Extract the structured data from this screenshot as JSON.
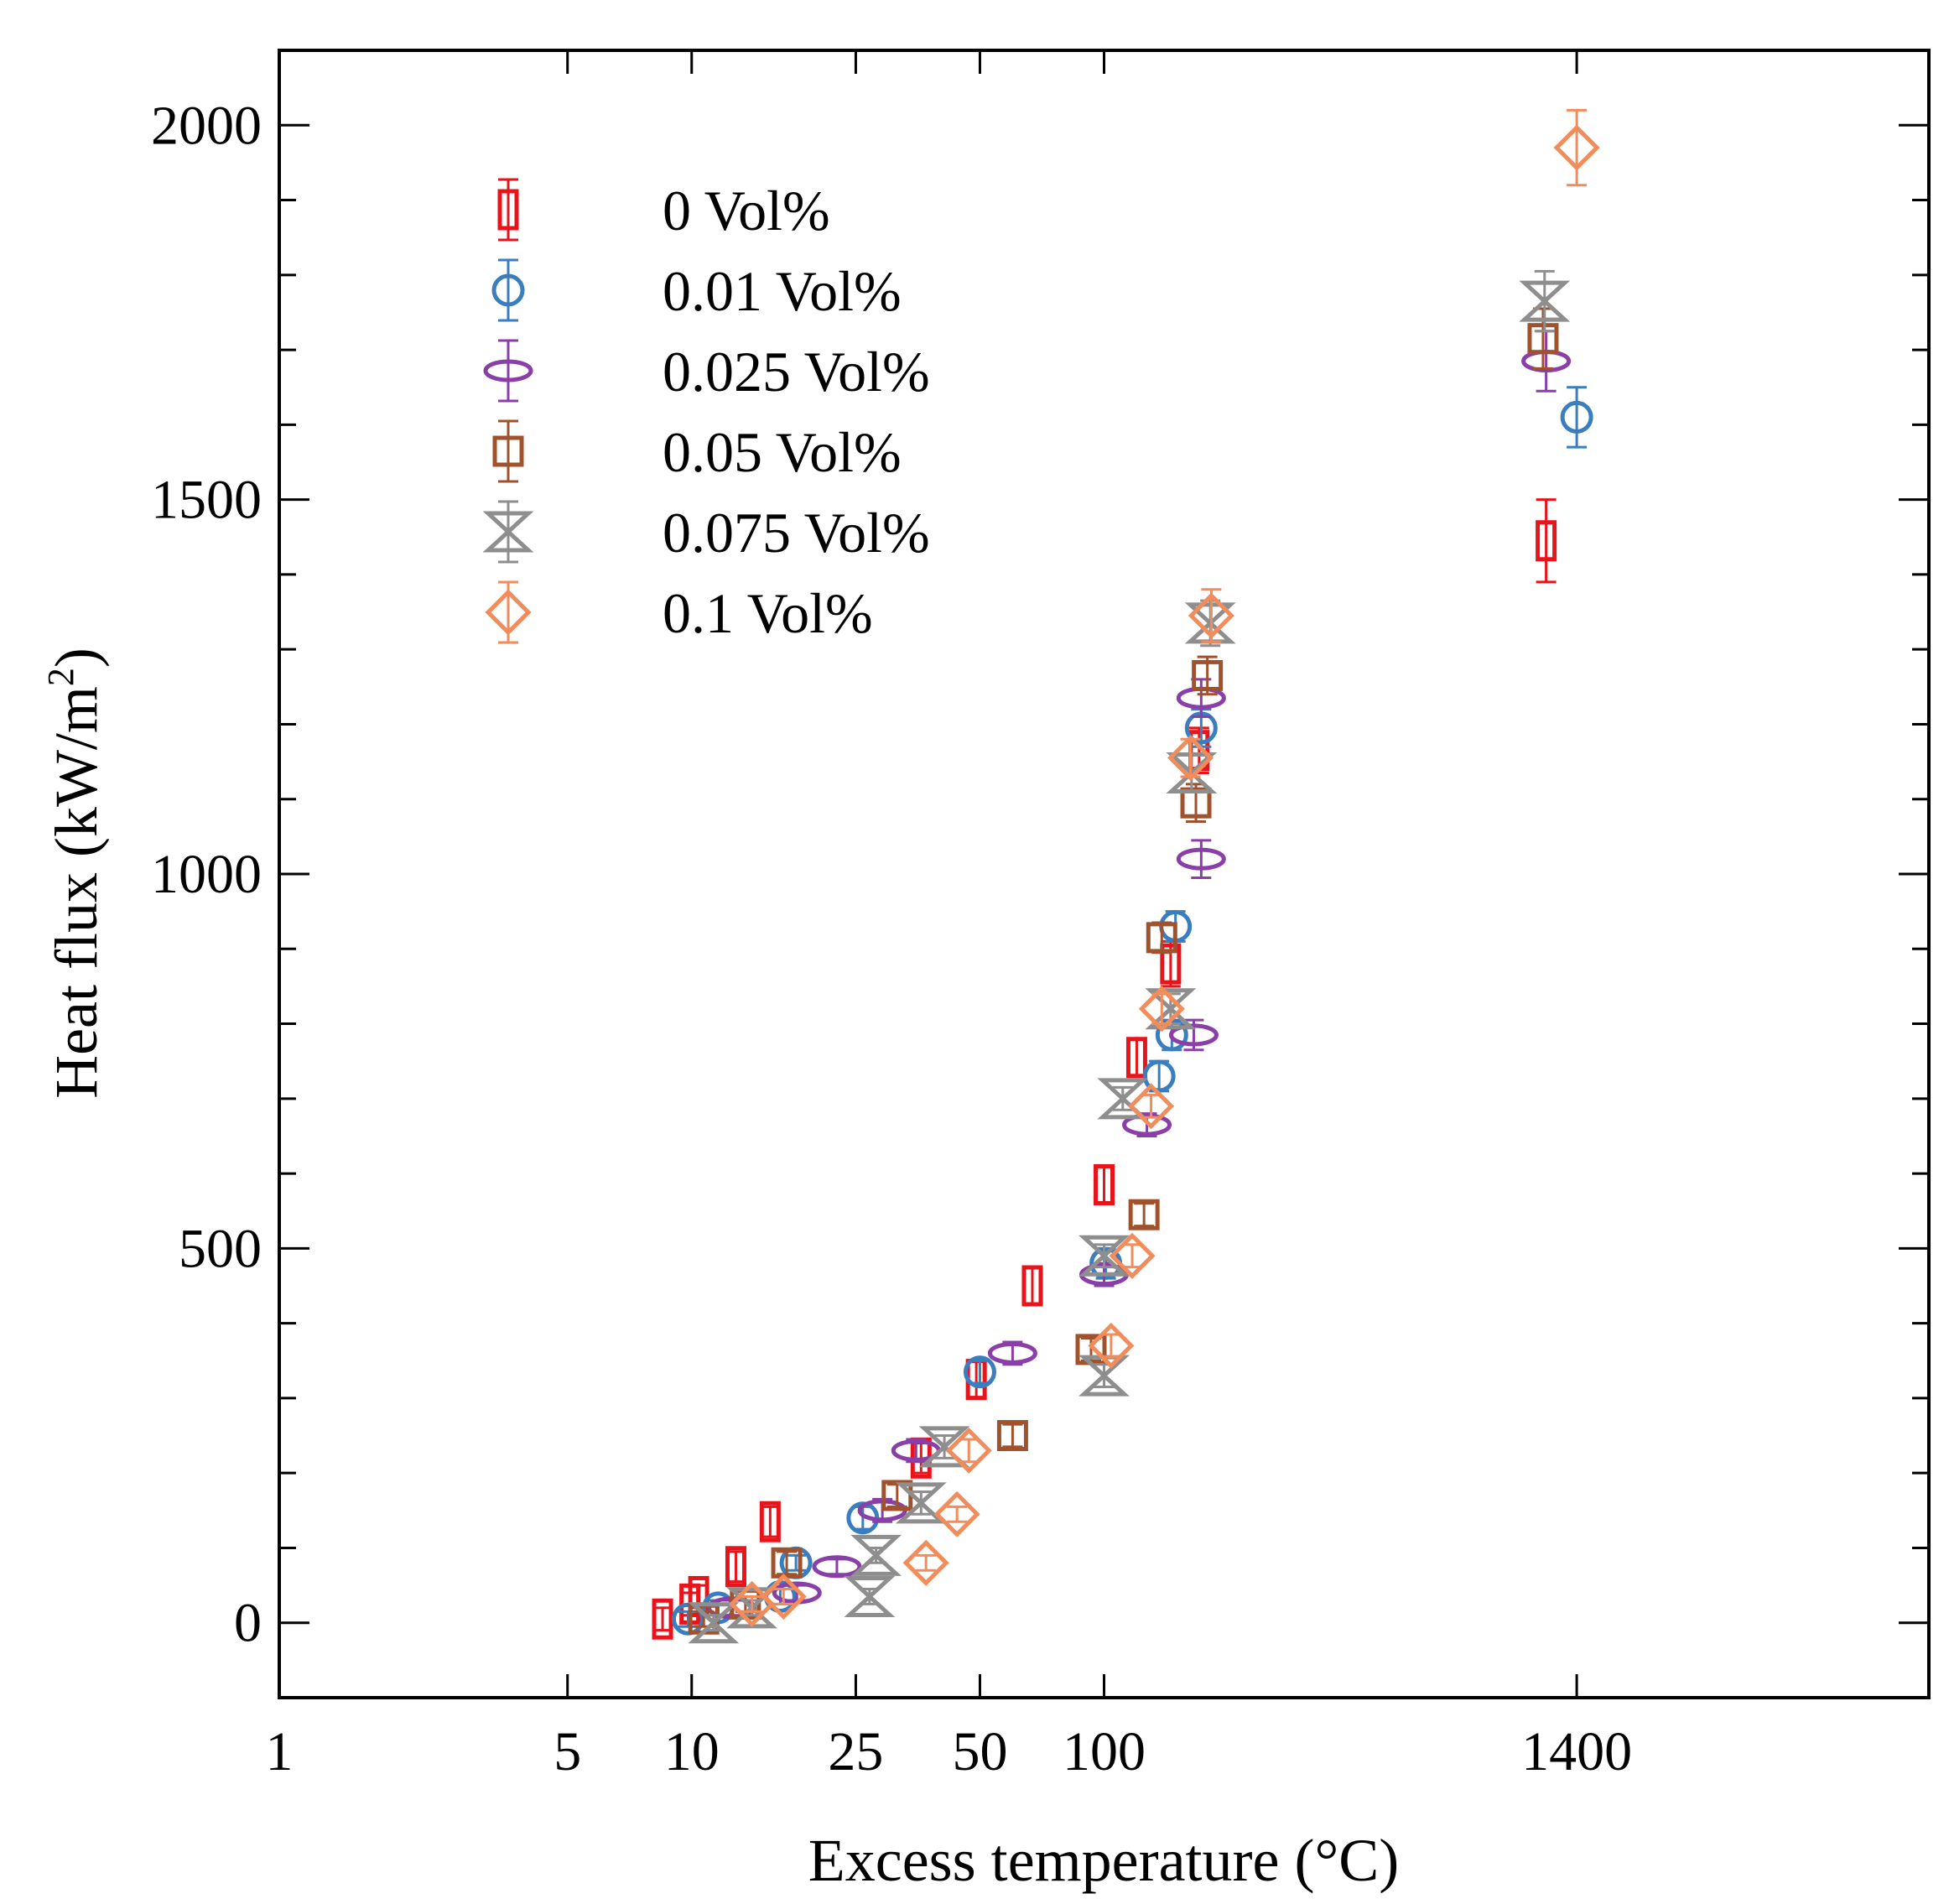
{
  "chart_data": {
    "type": "scatter",
    "title": "",
    "xlabel": "Excess temperature (°C)",
    "ylabel": "Heat flux (kW/m",
    "ylabel_sup": "2",
    "ylabel_close": ")",
    "x_scale": "log",
    "xlim": [
      1,
      10000
    ],
    "ylim": [
      -100,
      2100
    ],
    "x_ticks": [
      {
        "value": 1,
        "label": "1"
      },
      {
        "value": 5,
        "label": "5"
      },
      {
        "value": 10,
        "label": "10"
      },
      {
        "value": 25,
        "label": "25"
      },
      {
        "value": 50,
        "label": "50"
      },
      {
        "value": 100,
        "label": "100"
      },
      {
        "value": 1400,
        "label": "1400"
      }
    ],
    "y_ticks": [
      {
        "value": 0,
        "label": "0"
      },
      {
        "value": 500,
        "label": "500"
      },
      {
        "value": 1000,
        "label": "1000"
      },
      {
        "value": 1500,
        "label": "1500"
      },
      {
        "value": 2000,
        "label": "2000"
      }
    ],
    "legend_position": "top-left",
    "series": [
      {
        "name": "0 Vol%",
        "marker": "narrow-rect",
        "color": "#e8141c",
        "points": [
          {
            "x": 8.5,
            "y": 5,
            "err": 15
          },
          {
            "x": 9.9,
            "y": 25,
            "err": 15
          },
          {
            "x": 10.4,
            "y": 35,
            "err": 15
          },
          {
            "x": 12.8,
            "y": 75,
            "err": 20
          },
          {
            "x": 15.5,
            "y": 135,
            "err": 20
          },
          {
            "x": 36,
            "y": 220,
            "err": 20
          },
          {
            "x": 49,
            "y": 325,
            "err": 25
          },
          {
            "x": 67,
            "y": 450,
            "err": 25
          },
          {
            "x": 100,
            "y": 585,
            "err": 25
          },
          {
            "x": 120,
            "y": 755,
            "err": 25
          },
          {
            "x": 145,
            "y": 880,
            "err": 30
          },
          {
            "x": 170,
            "y": 1165,
            "err": 30
          },
          {
            "x": 1180,
            "y": 1445,
            "err": 55
          }
        ]
      },
      {
        "name": "0.01 Vol%",
        "marker": "circle",
        "color": "#3a7ebf",
        "points": [
          {
            "x": 9.8,
            "y": 5,
            "err": 10
          },
          {
            "x": 11.6,
            "y": 20,
            "err": 10
          },
          {
            "x": 16.4,
            "y": 35,
            "err": 10
          },
          {
            "x": 17.9,
            "y": 80,
            "err": 10
          },
          {
            "x": 26,
            "y": 140,
            "err": 15
          },
          {
            "x": 50,
            "y": 335,
            "err": 15
          },
          {
            "x": 101,
            "y": 480,
            "err": 20
          },
          {
            "x": 136,
            "y": 730,
            "err": 20
          },
          {
            "x": 146,
            "y": 785,
            "err": 20
          },
          {
            "x": 149,
            "y": 930,
            "err": 20
          },
          {
            "x": 172,
            "y": 1195,
            "err": 25
          },
          {
            "x": 1400,
            "y": 1610,
            "err": 40
          }
        ]
      },
      {
        "name": "0.025 Vol%",
        "marker": "ellipse",
        "color": "#8a3fa8",
        "points": [
          {
            "x": 12.5,
            "y": 20,
            "err": 10
          },
          {
            "x": 18,
            "y": 40,
            "err": 10
          },
          {
            "x": 22.5,
            "y": 75,
            "err": 10
          },
          {
            "x": 29,
            "y": 150,
            "err": 15
          },
          {
            "x": 35,
            "y": 230,
            "err": 15
          },
          {
            "x": 60,
            "y": 360,
            "err": 15
          },
          {
            "x": 100,
            "y": 465,
            "err": 15
          },
          {
            "x": 127,
            "y": 665,
            "err": 15
          },
          {
            "x": 165,
            "y": 785,
            "err": 20
          },
          {
            "x": 172,
            "y": 1020,
            "err": 25
          },
          {
            "x": 172,
            "y": 1235,
            "err": 25
          },
          {
            "x": 1180,
            "y": 1685,
            "err": 40
          }
        ]
      },
      {
        "name": "0.05 Vol%",
        "marker": "square",
        "color": "#a0522d",
        "points": [
          {
            "x": 10.7,
            "y": 5,
            "err": 10
          },
          {
            "x": 13.5,
            "y": 25,
            "err": 10
          },
          {
            "x": 17,
            "y": 80,
            "err": 15
          },
          {
            "x": 31.5,
            "y": 170,
            "err": 15
          },
          {
            "x": 60,
            "y": 250,
            "err": 15
          },
          {
            "x": 93,
            "y": 365,
            "err": 15
          },
          {
            "x": 125,
            "y": 545,
            "err": 15
          },
          {
            "x": 138,
            "y": 915,
            "err": 20
          },
          {
            "x": 167,
            "y": 1095,
            "err": 25
          },
          {
            "x": 178,
            "y": 1265,
            "err": 25
          },
          {
            "x": 1160,
            "y": 1715,
            "err": 40
          }
        ]
      },
      {
        "name": "0.075 Vol%",
        "marker": "hourglass",
        "color": "#8e8e8e",
        "points": [
          {
            "x": 11.3,
            "y": 0,
            "err": 10
          },
          {
            "x": 14,
            "y": 20,
            "err": 10
          },
          {
            "x": 27,
            "y": 35,
            "err": 10
          },
          {
            "x": 28,
            "y": 90,
            "err": 10
          },
          {
            "x": 36,
            "y": 160,
            "err": 15
          },
          {
            "x": 41,
            "y": 235,
            "err": 15
          },
          {
            "x": 100,
            "y": 330,
            "err": 15
          },
          {
            "x": 100,
            "y": 490,
            "err": 15
          },
          {
            "x": 111,
            "y": 700,
            "err": 15
          },
          {
            "x": 145,
            "y": 820,
            "err": 20
          },
          {
            "x": 163,
            "y": 1135,
            "err": 25
          },
          {
            "x": 181,
            "y": 1335,
            "err": 30
          },
          {
            "x": 1170,
            "y": 1765,
            "err": 40
          }
        ]
      },
      {
        "name": "0.1 Vol%",
        "marker": "diamond",
        "color": "#f28c5a",
        "points": [
          {
            "x": 14,
            "y": 25,
            "err": 10
          },
          {
            "x": 16.7,
            "y": 35,
            "err": 10
          },
          {
            "x": 37,
            "y": 80,
            "err": 10
          },
          {
            "x": 44,
            "y": 145,
            "err": 10
          },
          {
            "x": 47,
            "y": 230,
            "err": 15
          },
          {
            "x": 104,
            "y": 370,
            "err": 15
          },
          {
            "x": 117,
            "y": 490,
            "err": 15
          },
          {
            "x": 130,
            "y": 690,
            "err": 15
          },
          {
            "x": 138,
            "y": 820,
            "err": 20
          },
          {
            "x": 162,
            "y": 1155,
            "err": 25
          },
          {
            "x": 182,
            "y": 1345,
            "err": 35
          },
          {
            "x": 1400,
            "y": 1970,
            "err": 50
          }
        ]
      }
    ]
  }
}
